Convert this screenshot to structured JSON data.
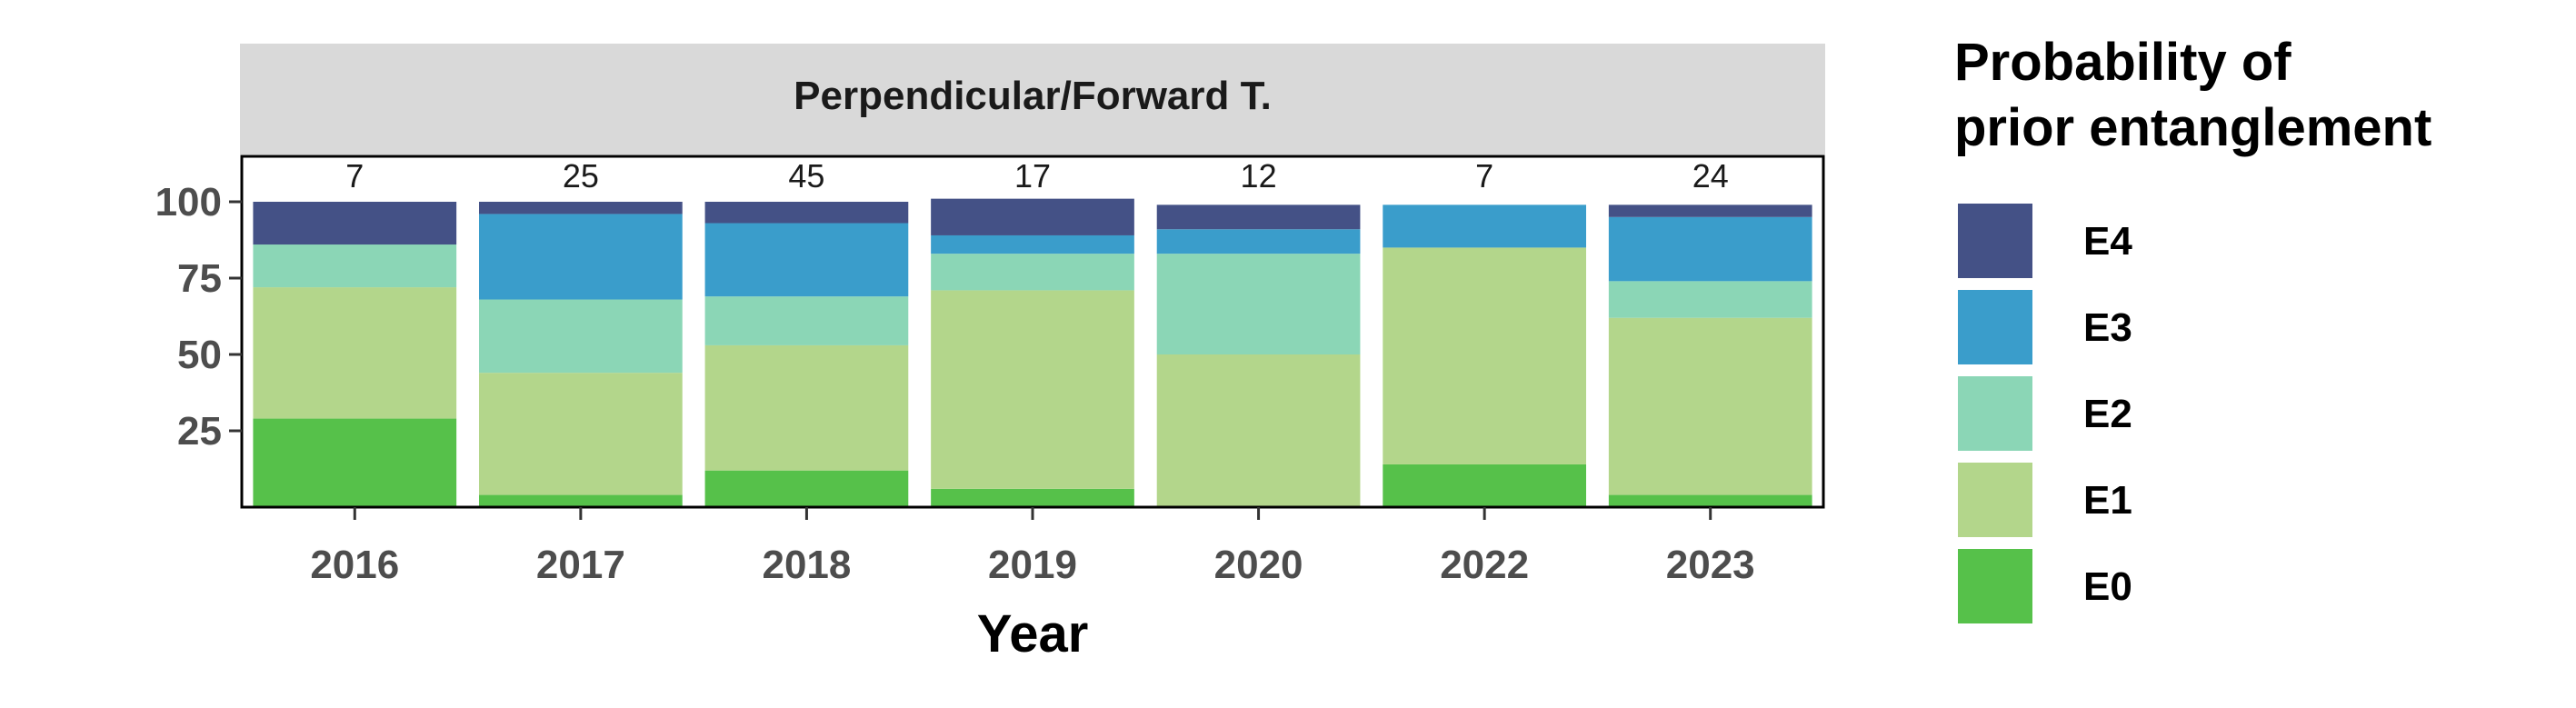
{
  "chart_data": {
    "type": "bar",
    "stacked": true,
    "facet_title": "Perpendicular/Forward T.",
    "xlabel": "Year",
    "ylabel": "",
    "ylim": [
      0,
      100
    ],
    "yticks": [
      25,
      50,
      75,
      100
    ],
    "categories": [
      "2016",
      "2017",
      "2018",
      "2019",
      "2020",
      "2022",
      "2023"
    ],
    "counts": [
      "7",
      "25",
      "45",
      "17",
      "12",
      "7",
      "24"
    ],
    "series": [
      {
        "name": "E0",
        "color": "#56c14a",
        "values": [
          29,
          4,
          12,
          6,
          0,
          14,
          4
        ]
      },
      {
        "name": "E1",
        "color": "#b3d68b",
        "values": [
          43,
          40,
          41,
          65,
          50,
          71,
          58
        ]
      },
      {
        "name": "E2",
        "color": "#8bd6b6",
        "values": [
          14,
          24,
          16,
          12,
          33,
          0,
          12
        ]
      },
      {
        "name": "E3",
        "color": "#3a9dcb",
        "values": [
          0,
          28,
          24,
          6,
          8,
          14,
          21
        ]
      },
      {
        "name": "E4",
        "color": "#445186",
        "values": [
          14,
          4,
          7,
          12,
          8,
          0,
          4
        ]
      }
    ],
    "legend": {
      "title_line1": "Probability of",
      "title_line2": "prior entanglement",
      "position": "right",
      "order": [
        "E4",
        "E3",
        "E2",
        "E1",
        "E0"
      ]
    },
    "grid": false,
    "colors": {
      "strip_bg": "#d9d9d9",
      "panel_border": "#000000",
      "axis_text": "#4d4d4d"
    }
  }
}
